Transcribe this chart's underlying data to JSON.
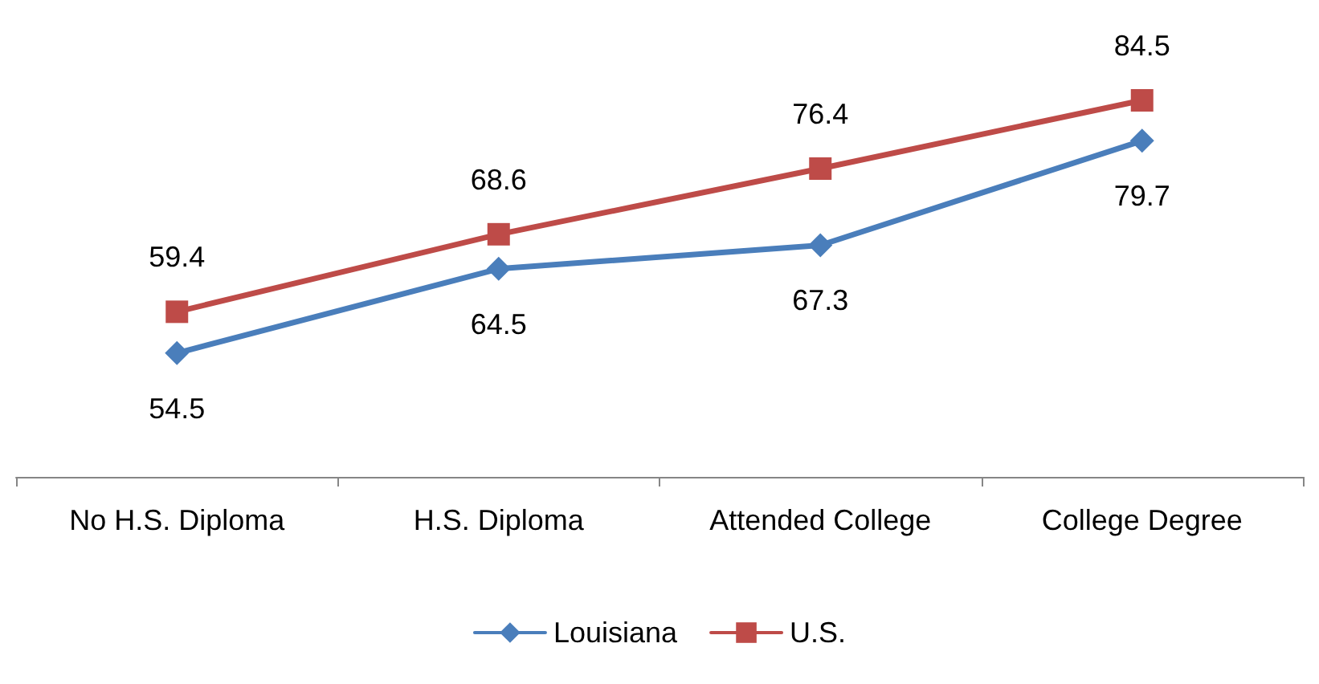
{
  "chart_data": {
    "type": "line",
    "categories": [
      "No H.S. Diploma",
      "H.S. Diploma",
      "Attended College",
      "College Degree"
    ],
    "series": [
      {
        "name": "Louisiana",
        "color": "#4a7ebb",
        "marker": "diamond",
        "values": [
          54.5,
          64.5,
          67.3,
          79.7
        ]
      },
      {
        "name": "U.S.",
        "color": "#be4b48",
        "marker": "square",
        "values": [
          59.4,
          68.6,
          76.4,
          84.5
        ]
      }
    ],
    "tick_labels": "x",
    "data_labels": true,
    "grid": false,
    "legend": "bottom"
  }
}
